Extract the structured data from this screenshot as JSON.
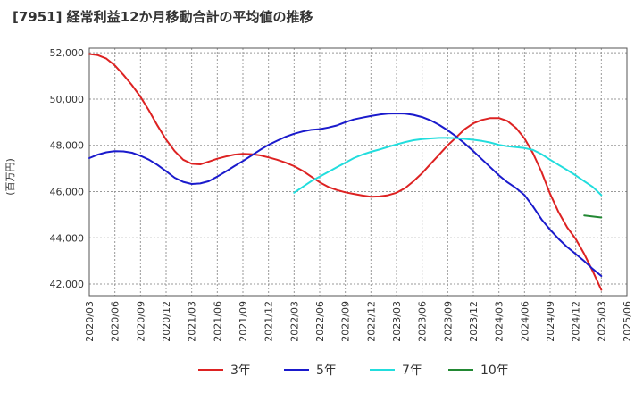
{
  "chart_data": {
    "type": "line",
    "title": "[7951]  経常利益12か月移動合計の平均値の推移",
    "ylabel": "(百万円)",
    "xlabel": "",
    "ylim": [
      41500,
      52200
    ],
    "yticks": [
      42000,
      44000,
      46000,
      48000,
      50000,
      52000
    ],
    "ytick_labels": [
      "42,000",
      "44,000",
      "46,000",
      "48,000",
      "50,000",
      "52,000"
    ],
    "xlim": [
      "2020/03",
      "2025/06"
    ],
    "xtick_labels": [
      "2020/03",
      "2020/06",
      "2020/09",
      "2020/12",
      "2021/03",
      "2021/06",
      "2021/09",
      "2021/12",
      "2022/03",
      "2022/06",
      "2022/09",
      "2022/12",
      "2023/03",
      "2023/06",
      "2023/09",
      "2023/12",
      "2024/03",
      "2024/06",
      "2024/09",
      "2024/12",
      "2025/03",
      "2025/06"
    ],
    "grid": true,
    "legend_position": "bottom",
    "series": [
      {
        "name": "3年",
        "color": "#dd2222",
        "points": [
          [
            "2020/03",
            51950
          ],
          [
            "2020/04",
            51900
          ],
          [
            "2020/05",
            51750
          ],
          [
            "2020/06",
            51450
          ],
          [
            "2020/07",
            51050
          ],
          [
            "2020/08",
            50600
          ],
          [
            "2020/09",
            50100
          ],
          [
            "2020/10",
            49500
          ],
          [
            "2020/11",
            48850
          ],
          [
            "2020/12",
            48250
          ],
          [
            "2021/01",
            47750
          ],
          [
            "2021/02",
            47380
          ],
          [
            "2021/03",
            47200
          ],
          [
            "2021/04",
            47180
          ],
          [
            "2021/05",
            47300
          ],
          [
            "2021/06",
            47420
          ],
          [
            "2021/07",
            47520
          ],
          [
            "2021/08",
            47600
          ],
          [
            "2021/09",
            47630
          ],
          [
            "2021/10",
            47620
          ],
          [
            "2021/11",
            47570
          ],
          [
            "2021/12",
            47480
          ],
          [
            "2022/01",
            47380
          ],
          [
            "2022/02",
            47250
          ],
          [
            "2022/03",
            47100
          ],
          [
            "2022/04",
            46900
          ],
          [
            "2022/05",
            46650
          ],
          [
            "2022/06",
            46400
          ],
          [
            "2022/07",
            46200
          ],
          [
            "2022/08",
            46070
          ],
          [
            "2022/09",
            45970
          ],
          [
            "2022/10",
            45900
          ],
          [
            "2022/11",
            45830
          ],
          [
            "2022/12",
            45780
          ],
          [
            "2023/01",
            45790
          ],
          [
            "2023/02",
            45840
          ],
          [
            "2023/03",
            45950
          ],
          [
            "2023/04",
            46150
          ],
          [
            "2023/05",
            46450
          ],
          [
            "2023/06",
            46800
          ],
          [
            "2023/07",
            47200
          ],
          [
            "2023/08",
            47600
          ],
          [
            "2023/09",
            48000
          ],
          [
            "2023/10",
            48350
          ],
          [
            "2023/11",
            48700
          ],
          [
            "2023/12",
            48950
          ],
          [
            "2024/01",
            49100
          ],
          [
            "2024/02",
            49180
          ],
          [
            "2024/03",
            49180
          ],
          [
            "2024/04",
            49050
          ],
          [
            "2024/05",
            48750
          ],
          [
            "2024/06",
            48300
          ],
          [
            "2024/07",
            47650
          ],
          [
            "2024/08",
            46850
          ],
          [
            "2024/09",
            45900
          ],
          [
            "2024/10",
            45100
          ],
          [
            "2024/11",
            44450
          ],
          [
            "2024/12",
            43950
          ],
          [
            "2025/01",
            43300
          ],
          [
            "2025/02",
            42550
          ],
          [
            "2025/03",
            41750
          ]
        ]
      },
      {
        "name": "5年",
        "color": "#1a1acc",
        "points": [
          [
            "2020/03",
            47450
          ],
          [
            "2020/04",
            47600
          ],
          [
            "2020/05",
            47700
          ],
          [
            "2020/06",
            47750
          ],
          [
            "2020/07",
            47740
          ],
          [
            "2020/08",
            47680
          ],
          [
            "2020/09",
            47550
          ],
          [
            "2020/10",
            47380
          ],
          [
            "2020/11",
            47150
          ],
          [
            "2020/12",
            46880
          ],
          [
            "2021/01",
            46600
          ],
          [
            "2021/02",
            46420
          ],
          [
            "2021/03",
            46330
          ],
          [
            "2021/04",
            46350
          ],
          [
            "2021/05",
            46450
          ],
          [
            "2021/06",
            46650
          ],
          [
            "2021/07",
            46870
          ],
          [
            "2021/08",
            47100
          ],
          [
            "2021/09",
            47320
          ],
          [
            "2021/10",
            47560
          ],
          [
            "2021/11",
            47800
          ],
          [
            "2021/12",
            48020
          ],
          [
            "2022/01",
            48200
          ],
          [
            "2022/02",
            48370
          ],
          [
            "2022/03",
            48500
          ],
          [
            "2022/04",
            48600
          ],
          [
            "2022/05",
            48670
          ],
          [
            "2022/06",
            48700
          ],
          [
            "2022/07",
            48770
          ],
          [
            "2022/08",
            48860
          ],
          [
            "2022/09",
            49000
          ],
          [
            "2022/10",
            49120
          ],
          [
            "2022/11",
            49200
          ],
          [
            "2022/12",
            49270
          ],
          [
            "2023/01",
            49330
          ],
          [
            "2023/02",
            49370
          ],
          [
            "2023/03",
            49380
          ],
          [
            "2023/04",
            49370
          ],
          [
            "2023/05",
            49320
          ],
          [
            "2023/06",
            49220
          ],
          [
            "2023/07",
            49080
          ],
          [
            "2023/08",
            48880
          ],
          [
            "2023/09",
            48650
          ],
          [
            "2023/10",
            48380
          ],
          [
            "2023/11",
            48080
          ],
          [
            "2023/12",
            47750
          ],
          [
            "2024/01",
            47400
          ],
          [
            "2024/02",
            47050
          ],
          [
            "2024/03",
            46700
          ],
          [
            "2024/04",
            46400
          ],
          [
            "2024/05",
            46150
          ],
          [
            "2024/06",
            45850
          ],
          [
            "2024/07",
            45350
          ],
          [
            "2024/08",
            44800
          ],
          [
            "2024/09",
            44350
          ],
          [
            "2024/10",
            43950
          ],
          [
            "2024/11",
            43600
          ],
          [
            "2024/12",
            43300
          ],
          [
            "2025/01",
            42990
          ],
          [
            "2025/02",
            42650
          ],
          [
            "2025/03",
            42350
          ]
        ]
      },
      {
        "name": "7年",
        "color": "#22dddd",
        "points": [
          [
            "2022/03",
            45950
          ],
          [
            "2022/04",
            46200
          ],
          [
            "2022/05",
            46450
          ],
          [
            "2022/06",
            46650
          ],
          [
            "2022/07",
            46850
          ],
          [
            "2022/08",
            47050
          ],
          [
            "2022/09",
            47250
          ],
          [
            "2022/10",
            47450
          ],
          [
            "2022/11",
            47600
          ],
          [
            "2022/12",
            47720
          ],
          [
            "2023/01",
            47820
          ],
          [
            "2023/02",
            47930
          ],
          [
            "2023/03",
            48040
          ],
          [
            "2023/04",
            48140
          ],
          [
            "2023/05",
            48220
          ],
          [
            "2023/06",
            48270
          ],
          [
            "2023/07",
            48300
          ],
          [
            "2023/08",
            48320
          ],
          [
            "2023/09",
            48320
          ],
          [
            "2023/10",
            48310
          ],
          [
            "2023/11",
            48280
          ],
          [
            "2023/12",
            48240
          ],
          [
            "2024/01",
            48190
          ],
          [
            "2024/02",
            48120
          ],
          [
            "2024/03",
            48020
          ],
          [
            "2024/04",
            47960
          ],
          [
            "2024/05",
            47920
          ],
          [
            "2024/06",
            47880
          ],
          [
            "2024/07",
            47800
          ],
          [
            "2024/08",
            47620
          ],
          [
            "2024/09",
            47380
          ],
          [
            "2024/10",
            47150
          ],
          [
            "2024/11",
            46930
          ],
          [
            "2024/12",
            46700
          ],
          [
            "2025/01",
            46450
          ],
          [
            "2025/02",
            46200
          ],
          [
            "2025/03",
            45850
          ]
        ]
      },
      {
        "name": "10年",
        "color": "#228833",
        "points": [
          [
            "2025/01",
            44970
          ],
          [
            "2025/03",
            44880
          ]
        ]
      }
    ]
  }
}
